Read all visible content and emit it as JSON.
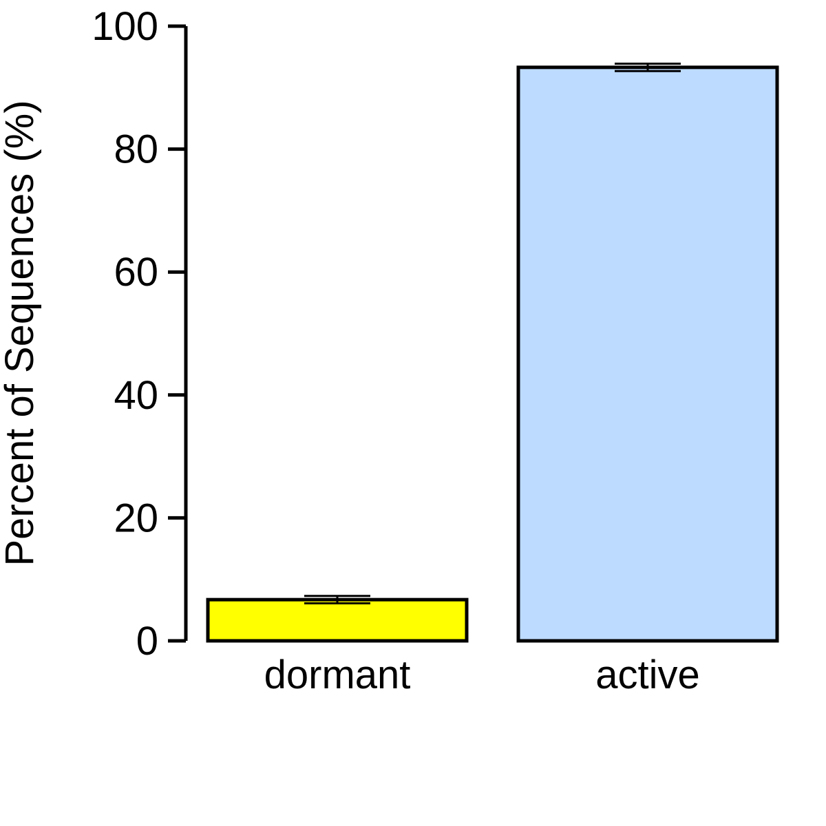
{
  "chart_data": {
    "type": "bar",
    "title": "",
    "xlabel": "",
    "ylabel": "Percent of Sequences (%)",
    "ylim": [
      0,
      100
    ],
    "yticks": [
      0,
      20,
      40,
      60,
      80,
      100
    ],
    "ytick_labels": [
      "0",
      "20",
      "40",
      "60",
      "80",
      "100"
    ],
    "categories": [
      "dormant",
      "active"
    ],
    "values": [
      6.7,
      93.3
    ],
    "error": [
      0.6,
      0.6
    ],
    "colors": [
      "#ffff00",
      "#bddbfe"
    ],
    "grid": false,
    "legend": "none"
  }
}
